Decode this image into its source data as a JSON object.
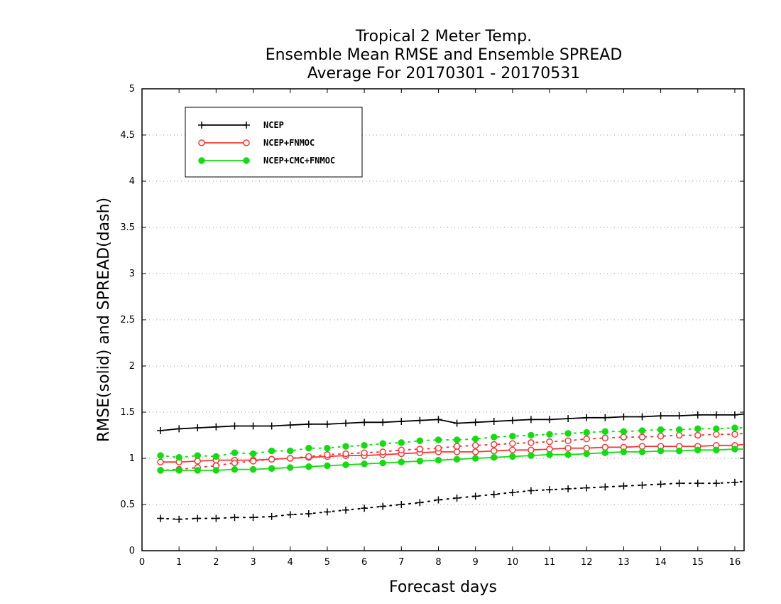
{
  "chart_data": {
    "type": "line",
    "title_lines": [
      "Tropical 2 Meter Temp.",
      "Ensemble Mean RMSE and Ensemble SPREAD",
      "Average For 20170301 - 20170531"
    ],
    "xlabel": "Forecast days",
    "ylabel": "RMSE(solid) and SPREAD(dash)",
    "xlim": [
      0,
      16.25
    ],
    "ylim": [
      0,
      5
    ],
    "xticks": [
      "0",
      "1",
      "2",
      "3",
      "4",
      "5",
      "6",
      "7",
      "8",
      "9",
      "10",
      "11",
      "12",
      "13",
      "14",
      "15",
      "16"
    ],
    "yticks": [
      "0",
      "0.5",
      "1",
      "1.5",
      "2",
      "2.5",
      "3",
      "3.5",
      "4",
      "4.5",
      "5"
    ],
    "grid": "horizontal dotted",
    "legend_position": "top-left",
    "x": [
      0.5,
      1,
      1.5,
      2,
      2.5,
      3,
      3.5,
      4,
      4.5,
      5,
      5.5,
      6,
      6.5,
      7,
      7.5,
      8,
      8.5,
      9,
      9.5,
      10,
      10.5,
      11,
      11.5,
      12,
      12.5,
      13,
      13.5,
      14,
      14.5,
      15,
      15.5,
      16,
      16.25
    ],
    "series": [
      {
        "name": "NCEP",
        "color": "#000000",
        "marker": "plus",
        "rmse": [
          1.3,
          1.32,
          1.33,
          1.34,
          1.35,
          1.35,
          1.35,
          1.36,
          1.37,
          1.37,
          1.38,
          1.39,
          1.39,
          1.4,
          1.41,
          1.42,
          1.38,
          1.39,
          1.4,
          1.41,
          1.42,
          1.42,
          1.43,
          1.44,
          1.44,
          1.45,
          1.45,
          1.46,
          1.46,
          1.47,
          1.47,
          1.47,
          1.48
        ],
        "spread": [
          0.35,
          0.34,
          0.35,
          0.35,
          0.36,
          0.36,
          0.37,
          0.39,
          0.4,
          0.42,
          0.44,
          0.46,
          0.48,
          0.5,
          0.52,
          0.55,
          0.57,
          0.59,
          0.61,
          0.63,
          0.65,
          0.66,
          0.67,
          0.68,
          0.69,
          0.7,
          0.71,
          0.72,
          0.73,
          0.73,
          0.73,
          0.74,
          0.75
        ]
      },
      {
        "name": "NCEP+FNMOC",
        "color": "#ff3333",
        "marker": "open-circle",
        "rmse": [
          0.96,
          0.96,
          0.97,
          0.98,
          0.98,
          0.98,
          0.99,
          1.0,
          1.01,
          1.02,
          1.03,
          1.03,
          1.04,
          1.05,
          1.06,
          1.07,
          1.07,
          1.07,
          1.08,
          1.09,
          1.09,
          1.1,
          1.11,
          1.11,
          1.12,
          1.12,
          1.13,
          1.13,
          1.13,
          1.13,
          1.14,
          1.14,
          1.15
        ],
        "spread": [
          0.87,
          0.88,
          0.9,
          0.92,
          0.95,
          0.97,
          0.99,
          1.0,
          1.02,
          1.04,
          1.05,
          1.06,
          1.07,
          1.09,
          1.1,
          1.11,
          1.13,
          1.14,
          1.15,
          1.16,
          1.17,
          1.18,
          1.19,
          1.21,
          1.22,
          1.23,
          1.23,
          1.24,
          1.25,
          1.25,
          1.26,
          1.26,
          1.27
        ]
      },
      {
        "name": "NCEP+CMC+FNMOC",
        "color": "#11dd11",
        "marker": "filled-circle",
        "rmse": [
          0.87,
          0.87,
          0.87,
          0.87,
          0.88,
          0.88,
          0.89,
          0.9,
          0.91,
          0.92,
          0.93,
          0.94,
          0.95,
          0.96,
          0.97,
          0.98,
          0.99,
          1.0,
          1.01,
          1.02,
          1.03,
          1.04,
          1.04,
          1.05,
          1.06,
          1.07,
          1.07,
          1.08,
          1.08,
          1.09,
          1.09,
          1.1,
          1.1
        ],
        "spread": [
          1.03,
          1.01,
          1.03,
          1.02,
          1.06,
          1.05,
          1.08,
          1.08,
          1.11,
          1.11,
          1.13,
          1.14,
          1.16,
          1.17,
          1.19,
          1.2,
          1.2,
          1.21,
          1.23,
          1.24,
          1.25,
          1.26,
          1.27,
          1.28,
          1.29,
          1.29,
          1.3,
          1.31,
          1.31,
          1.32,
          1.32,
          1.33,
          1.33
        ]
      }
    ]
  }
}
